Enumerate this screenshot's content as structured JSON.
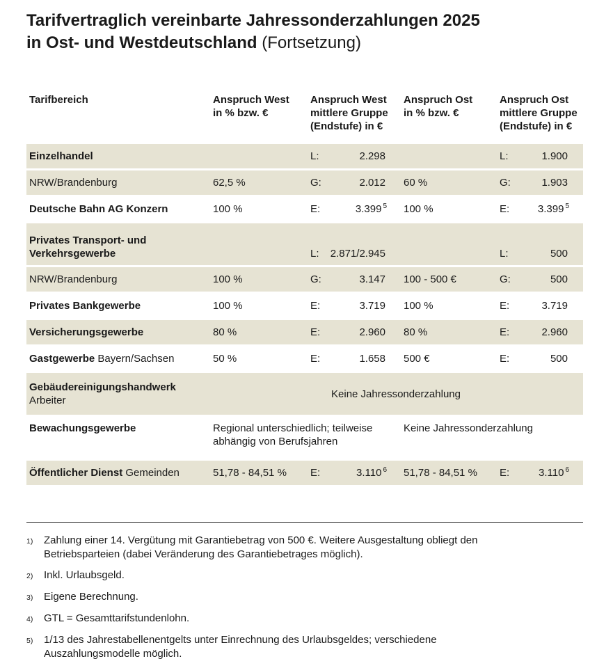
{
  "title": {
    "line1": "Tarifvertraglich vereinbarte Jahressonderzahlungen 2025",
    "line2_bold": "in Ost- und Westdeutschland",
    "line2_normal": " (Fortsetzung)"
  },
  "colors": {
    "shade_row": "#e6e3d3",
    "bar": "#0a0a0a"
  },
  "table": {
    "headers": {
      "col1": "Tarifbereich",
      "col2_l1": "Anspruch West",
      "col2_l2": "in % bzw. €",
      "col3_l1": "Anspruch West",
      "col3_l2": "mittlere Gruppe",
      "col3_l3": "(Endstufe) in €",
      "col4_l1": "Anspruch Ost",
      "col4_l2": "in % bzw. €",
      "col5_l1": "Anspruch Ost",
      "col5_l2": "mittlere Gruppe",
      "col5_l3": "(Endstufe) in €"
    },
    "rows": [
      {
        "label_bold": "Einzelhandel",
        "label_rest": "",
        "west_pct": "",
        "west_letter": "L:",
        "west_value": "2.298",
        "west_sup": "",
        "ost_pct": "",
        "ost_letter": "L:",
        "ost_value": "1.900",
        "ost_sup": ""
      },
      {
        "label_bold": "",
        "label_rest": "NRW/Brandenburg",
        "west_pct": "62,5 %",
        "west_letter": "G:",
        "west_value": "2.012",
        "west_sup": "",
        "ost_pct": "60 %",
        "ost_letter": "G:",
        "ost_value": "1.903",
        "ost_sup": ""
      },
      {
        "label_bold": "Deutsche Bahn AG Konzern",
        "label_rest": "",
        "west_pct": "100 %",
        "west_letter": "E:",
        "west_value": "3.399",
        "west_sup": "5",
        "ost_pct": "100 %",
        "ost_letter": "E:",
        "ost_value": "3.399",
        "ost_sup": "5"
      },
      {
        "label_bold": "Privates Transport- und Verkehrsgewerbe",
        "label_rest": "",
        "west_pct": "",
        "west_letter": "L:",
        "west_value": "2.871/2.945",
        "west_sup": "",
        "ost_pct": "",
        "ost_letter": "L:",
        "ost_value": "500",
        "ost_sup": ""
      },
      {
        "label_bold": "",
        "label_rest": "NRW/Brandenburg",
        "west_pct": "100 %",
        "west_letter": "G:",
        "west_value": "3.147",
        "west_sup": "",
        "ost_pct": "100 - 500 €",
        "ost_letter": "G:",
        "ost_value": "500",
        "ost_sup": ""
      },
      {
        "label_bold": "Privates Bankgewerbe",
        "label_rest": "",
        "west_pct": "100 %",
        "west_letter": "E:",
        "west_value": "3.719",
        "west_sup": "",
        "ost_pct": "100 %",
        "ost_letter": "E:",
        "ost_value": "3.719",
        "ost_sup": ""
      },
      {
        "label_bold": "Versicherungsgewerbe",
        "label_rest": "",
        "west_pct": "80 %",
        "west_letter": "E:",
        "west_value": "2.960",
        "west_sup": "",
        "ost_pct": "80 %",
        "ost_letter": "E:",
        "ost_value": "2.960",
        "ost_sup": ""
      },
      {
        "label_bold": "Gastgewerbe",
        "label_rest": " Bayern/Sachsen",
        "west_pct": "50 %",
        "west_letter": "E:",
        "west_value": "1.658",
        "west_sup": "",
        "ost_pct": "500 €",
        "ost_letter": "E:",
        "ost_value": "500",
        "ost_sup": ""
      },
      {
        "label_bold": "Gebäudereinigungshandwerk",
        "label_rest": "Arbeiter",
        "span_all": "Keine Jahressonderzahlung"
      },
      {
        "label_bold": "Bewachungsgewerbe",
        "label_rest": "",
        "span_west": "Regional unterschiedlich; teilweise abhängig von Berufsjahren",
        "span_ost": "Keine Jahressonderzahlung"
      },
      {
        "label_bold": "Öffentlicher Dienst",
        "label_rest": " Gemeinden",
        "west_pct": "51,78 - 84,51 %",
        "west_letter": "E:",
        "west_value": "3.110",
        "west_sup": "6",
        "ost_pct": "51,78 - 84,51 %",
        "ost_letter": "E:",
        "ost_value": "3.110",
        "ost_sup": "6"
      }
    ]
  },
  "footnotes": [
    {
      "marker": "1)",
      "text": "Zahlung einer 14. Vergütung mit Garantiebetrag von 500 €. Weitere Ausgestaltung obliegt den Betriebsparteien (dabei Veränderung des Garantiebetrages möglich)."
    },
    {
      "marker": "2)",
      "text": "Inkl. Urlaubsgeld."
    },
    {
      "marker": "3)",
      "text": "Eigene Berechnung."
    },
    {
      "marker": "4)",
      "text": "GTL = Gesamttarifstundenlohn."
    },
    {
      "marker": "5)",
      "text": "1/13 des Jahrestabellenentgelts unter Einrechnung des Urlaubsgeldes; verschiedene Auszahlungsmodelle möglich."
    }
  ]
}
